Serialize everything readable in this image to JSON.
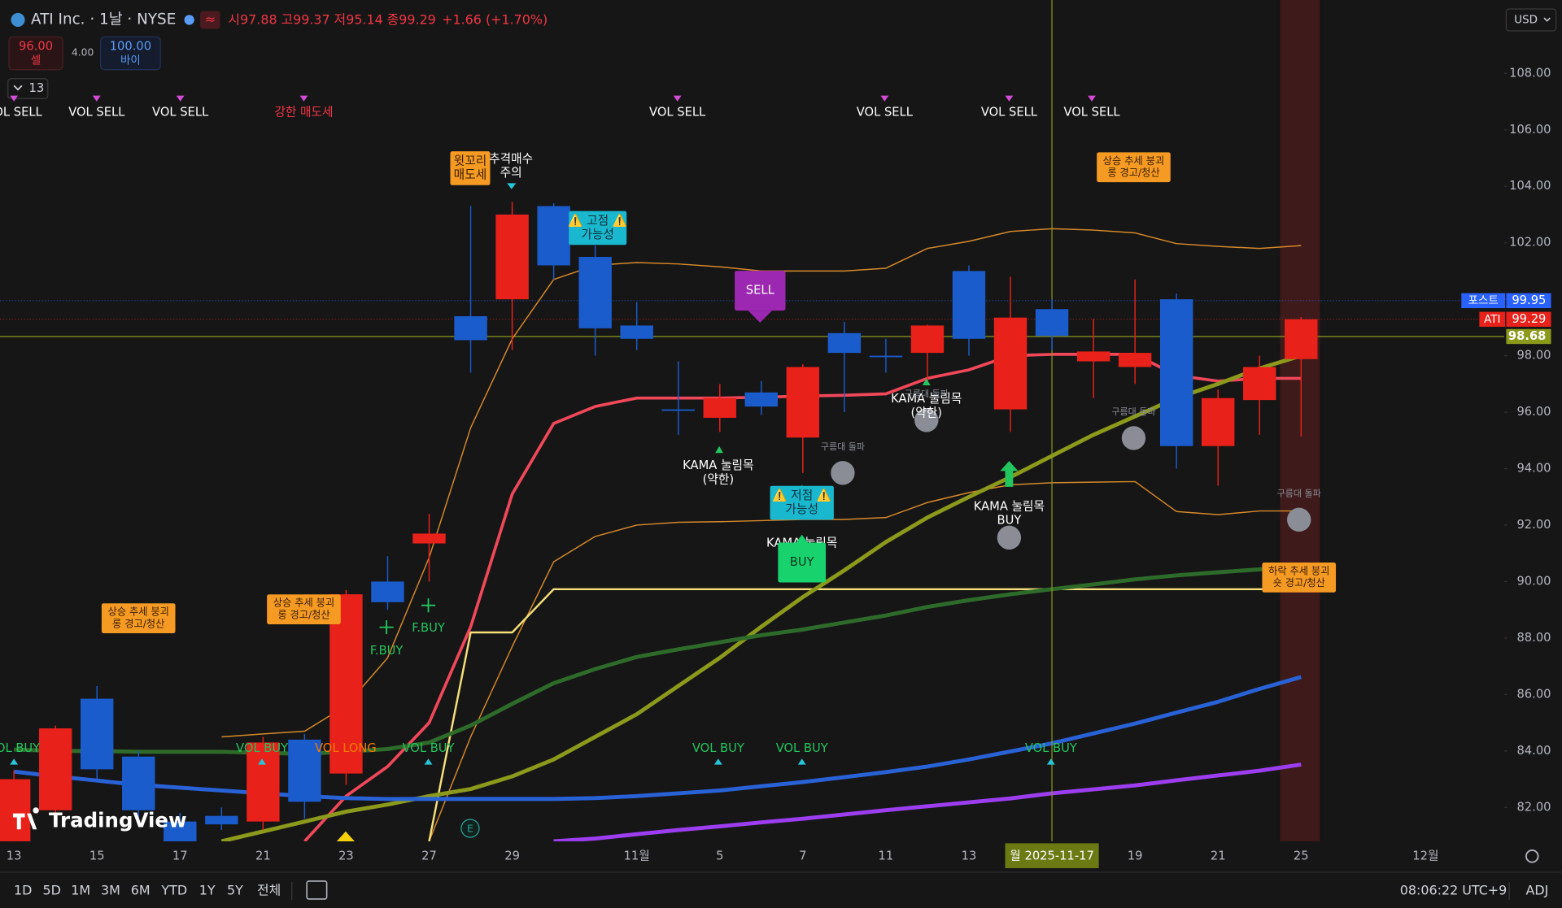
{
  "header": {
    "symbol": "ATI Inc. · 1날 · NYSE",
    "open_label": "시",
    "open": "97.88",
    "high_label": "고",
    "high": "99.37",
    "low_label": "저",
    "low": "95.14",
    "close_label": "종",
    "close": "99.29",
    "change": "+1.66 (+1.70%)"
  },
  "trade": {
    "sell_price": "96.00",
    "sell_label": "셀",
    "spread": "4.00",
    "buy_price": "100.00",
    "buy_label": "바이"
  },
  "indicator_toggle": "13",
  "currency": "USD",
  "watermark": "TradingView",
  "chart_data": {
    "type": "candlestick",
    "categories": [
      "13",
      null,
      "15",
      null,
      "17",
      null,
      "21",
      null,
      "23",
      null,
      "27",
      null,
      "29",
      null,
      null,
      "11월",
      null,
      "5",
      null,
      "7",
      null,
      "11",
      null,
      "13",
      null,
      "월 2025-11-17",
      null,
      "19",
      null,
      "21",
      null,
      "25",
      null,
      null,
      "12월"
    ],
    "open": [
      80.8,
      81.9,
      85.85,
      83.8,
      81.5,
      81.7,
      81.5,
      84.4,
      83.2,
      90.0,
      91.35,
      99.4,
      100.0,
      103.3,
      101.5,
      99.07,
      96.1,
      95.8,
      96.7,
      95.1,
      98.8,
      98.0,
      98.1,
      101.0,
      96.1,
      99.65,
      97.8,
      97.6,
      100.0,
      94.8,
      96.43,
      97.88,
      null,
      null,
      null
    ],
    "high": [
      83.3,
      84.9,
      86.3,
      84.0,
      81.8,
      82.0,
      84.5,
      84.6,
      89.7,
      90.9,
      92.4,
      103.3,
      103.45,
      103.4,
      101.9,
      99.9,
      97.8,
      97.0,
      97.1,
      97.7,
      99.2,
      98.6,
      99.1,
      101.2,
      100.8,
      100.0,
      99.3,
      100.7,
      100.2,
      96.8,
      98.0,
      99.37,
      null,
      null,
      null
    ],
    "low": [
      80.5,
      81.5,
      83.0,
      81.5,
      80.4,
      81.2,
      81.2,
      81.6,
      82.8,
      89.0,
      90.0,
      97.4,
      98.2,
      100.7,
      98.0,
      98.2,
      95.2,
      95.3,
      95.9,
      93.85,
      96.0,
      97.4,
      97.0,
      98.0,
      95.3,
      98.2,
      96.5,
      97.0,
      94.0,
      93.4,
      95.2,
      95.14,
      null,
      null,
      null
    ],
    "close": [
      83.0,
      84.8,
      83.35,
      81.9,
      80.7,
      81.4,
      84.3,
      82.2,
      89.55,
      89.27,
      91.7,
      98.55,
      103.0,
      101.2,
      98.97,
      98.6,
      96.05,
      96.5,
      96.2,
      97.6,
      98.1,
      97.95,
      99.07,
      98.6,
      99.35,
      98.7,
      98.15,
      98.1,
      94.8,
      96.5,
      97.6,
      99.29,
      null,
      null,
      null
    ],
    "up_color": "#e8211a",
    "down_color": "#1b5ccc",
    "series": [
      {
        "name": "KAMA",
        "color": "#f0485a",
        "width": 3,
        "values": [
          null,
          null,
          null,
          null,
          null,
          null,
          null,
          80.8,
          82.4,
          83.45,
          85.0,
          88.4,
          93.1,
          95.6,
          96.2,
          96.5,
          96.5,
          96.5,
          96.53,
          96.57,
          96.6,
          96.65,
          97.2,
          97.5,
          98.0,
          98.05,
          98.05,
          98.05,
          97.3,
          97.1,
          97.2,
          97.2,
          null,
          null,
          null
        ]
      },
      {
        "name": "Upper Band",
        "color": "#d68a2a",
        "width": 1.2,
        "values": [
          null,
          null,
          null,
          null,
          null,
          84.5,
          84.6,
          84.7,
          85.6,
          87.3,
          90.85,
          95.45,
          98.6,
          100.7,
          101.2,
          101.3,
          101.25,
          101.15,
          101.0,
          101.0,
          101.0,
          101.1,
          101.8,
          102.05,
          102.4,
          102.5,
          102.45,
          102.35,
          101.97,
          101.87,
          101.8,
          101.9,
          null,
          null,
          null
        ]
      },
      {
        "name": "Lower Band",
        "color": "#d68a2a",
        "width": 1.2,
        "values": [
          null,
          null,
          null,
          null,
          null,
          null,
          null,
          null,
          null,
          null,
          80.8,
          84.5,
          87.7,
          90.7,
          91.6,
          92.0,
          92.1,
          92.12,
          92.16,
          92.2,
          92.2,
          92.27,
          92.8,
          93.15,
          93.43,
          93.5,
          93.52,
          93.54,
          92.48,
          92.37,
          92.5,
          92.5,
          null,
          null,
          null
        ]
      },
      {
        "name": "Support",
        "color": "#f5e07a",
        "width": 2,
        "values": [
          null,
          null,
          null,
          null,
          null,
          null,
          null,
          null,
          null,
          null,
          80.8,
          88.2,
          88.2,
          89.73,
          89.73,
          89.73,
          89.73,
          89.73,
          89.73,
          89.73,
          89.73,
          89.73,
          89.73,
          89.73,
          89.73,
          89.73,
          89.73,
          89.73,
          89.73,
          89.73,
          89.73,
          89.73,
          null,
          null,
          null
        ]
      },
      {
        "name": "MA Olive",
        "color": "#8c9a1c",
        "width": 4,
        "values": [
          null,
          null,
          null,
          null,
          null,
          80.8,
          81.15,
          81.5,
          81.85,
          82.1,
          82.4,
          82.65,
          83.1,
          83.7,
          84.5,
          85.3,
          86.3,
          87.3,
          88.4,
          89.45,
          90.4,
          91.4,
          92.27,
          93.0,
          93.7,
          94.45,
          95.2,
          95.85,
          96.5,
          97.0,
          97.55,
          98.0,
          null,
          null,
          null
        ]
      },
      {
        "name": "MA Green",
        "color": "#2e6b2a",
        "width": 4,
        "values": [
          84.05,
          84.0,
          84.0,
          83.97,
          83.97,
          83.97,
          83.93,
          83.9,
          83.97,
          84.07,
          84.3,
          84.9,
          85.67,
          86.4,
          86.9,
          87.33,
          87.6,
          87.85,
          88.1,
          88.3,
          88.55,
          88.8,
          89.1,
          89.34,
          89.55,
          89.73,
          89.9,
          90.08,
          90.22,
          90.33,
          90.43,
          90.54,
          null,
          null,
          null
        ]
      },
      {
        "name": "MA Blue",
        "color": "#2962d6",
        "width": 4,
        "values": [
          83.27,
          83.1,
          82.95,
          82.8,
          82.7,
          82.6,
          82.5,
          82.4,
          82.33,
          82.3,
          82.3,
          82.3,
          82.3,
          82.3,
          82.33,
          82.4,
          82.5,
          82.6,
          82.75,
          82.9,
          83.07,
          83.25,
          83.45,
          83.7,
          83.98,
          84.27,
          84.62,
          84.97,
          85.36,
          85.74,
          86.2,
          86.62,
          null,
          null,
          null
        ]
      },
      {
        "name": "MA Purple",
        "color": "#9c3ef0",
        "width": 4,
        "values": [
          null,
          null,
          null,
          null,
          null,
          null,
          null,
          null,
          null,
          null,
          null,
          null,
          null,
          80.8,
          80.9,
          81.05,
          81.2,
          81.33,
          81.47,
          81.6,
          81.75,
          81.9,
          82.04,
          82.18,
          82.32,
          82.5,
          82.64,
          82.78,
          82.96,
          83.13,
          83.3,
          83.52,
          null,
          null,
          null
        ]
      }
    ],
    "ylim": [
      80.8,
      110.6
    ],
    "yticks": [
      {
        "value": 82,
        "label": "82.00"
      },
      {
        "value": 84,
        "label": "84.00"
      },
      {
        "value": 86,
        "label": "86.00"
      },
      {
        "value": 88,
        "label": "88.00"
      },
      {
        "value": 90,
        "label": "90.00"
      },
      {
        "value": 92,
        "label": "92.00"
      },
      {
        "value": 94,
        "label": "94.00"
      },
      {
        "value": 96,
        "label": "96.00"
      },
      {
        "value": 98,
        "label": "98.00"
      },
      {
        "value": 100,
        "label": "100.00"
      },
      {
        "value": 102,
        "label": "102.00"
      },
      {
        "value": 104,
        "label": "104.00"
      },
      {
        "value": 106,
        "label": "106.00"
      },
      {
        "value": 108,
        "label": "108.00"
      }
    ],
    "grid": false,
    "price_tags": [
      {
        "name": "포스트",
        "value": 99.95,
        "color": "#2962ff"
      },
      {
        "name": "ATI",
        "value": 99.29,
        "color": "#e8211a"
      }
    ],
    "crosshair_price": 98.68,
    "crosshair_color": "#8c9a1c"
  },
  "signals_top": [
    "VOL SELL",
    "VOL SELL",
    "VOL SELL",
    "강한 매도세",
    "VOL SELL",
    "VOL SELL",
    "VOL SELL",
    "VOL SELL"
  ],
  "signals_bottom": [
    "VOL BUY",
    "VOL BUY",
    "VOL LONG",
    "VOL BUY",
    "VOL BUY",
    "VOL BUY",
    "VOL BUY"
  ],
  "labels": [
    {
      "lines": [
        "윗꼬리",
        "매도세"
      ]
    },
    {
      "lines": [
        "추격매수",
        "주의"
      ]
    },
    {
      "lines": [
        "⚠️ 고점 ⚠️",
        "가능성"
      ]
    },
    {
      "lines": [
        "SELL"
      ]
    },
    {
      "lines": [
        "상승 추세 붕괴",
        "롱 경고/청산"
      ]
    },
    {
      "lines": [
        "상승 추세 붕괴",
        "롱 경고/청산"
      ]
    },
    {
      "lines": [
        "상승 추세 붕괴",
        "롱 경고/청산"
      ]
    },
    {
      "lines": [
        "하락 추세 붕괴",
        "숏 경고/청산"
      ]
    },
    {
      "lines": [
        "⚠️ 저점 ⚠️",
        "가능성"
      ]
    },
    {
      "lines": [
        "KAMA 눌림목"
      ]
    },
    {
      "lines": [
        "BUY"
      ]
    },
    {
      "lines": [
        "KAMA 눌림목",
        "(약한)"
      ]
    },
    {
      "lines": [
        "KAMA 눌림목",
        "(약한)"
      ]
    },
    {
      "lines": [
        "KAMA 눌림목",
        "BUY"
      ]
    },
    {
      "lines": [
        "구름대 돌파"
      ]
    },
    {
      "lines": [
        "구름대 돌파"
      ]
    },
    {
      "lines": [
        "구름대 돌파"
      ]
    },
    {
      "lines": [
        "구름대 돌파"
      ]
    },
    {
      "lines": [
        "F.BUY"
      ]
    },
    {
      "lines": [
        "F.BUY"
      ]
    }
  ],
  "toolbar": {
    "ranges": [
      "1D",
      "5D",
      "1M",
      "3M",
      "6M",
      "YTD",
      "1Y",
      "5Y",
      "전체"
    ],
    "clock": "08:06:22 UTC+9",
    "adj": "ADJ"
  }
}
